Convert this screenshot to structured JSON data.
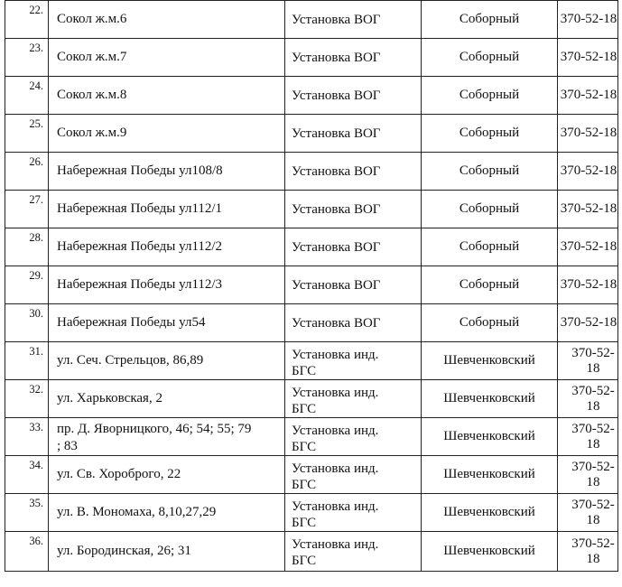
{
  "table": {
    "rows": [
      {
        "num": "22.",
        "address": "Сокол ж.м.6",
        "work": "Установка ВОГ",
        "district": "Соборный",
        "phone": "370-52-18"
      },
      {
        "num": "23.",
        "address": "Сокол ж.м.7",
        "work": "Установка ВОГ",
        "district": "Соборный",
        "phone": "370-52-18"
      },
      {
        "num": "24.",
        "address": "Сокол ж.м.8",
        "work": "Установка ВОГ",
        "district": "Соборный",
        "phone": "370-52-18"
      },
      {
        "num": "25.",
        "address": "Сокол ж.м.9",
        "work": "Установка ВОГ",
        "district": "Соборный",
        "phone": "370-52-18"
      },
      {
        "num": "26.",
        "address": "Набережная Победы ул108/8",
        "work": "Установка ВОГ",
        "district": "Соборный",
        "phone": "370-52-18"
      },
      {
        "num": "27.",
        "address": "Набережная Победы ул112/1",
        "work": "Установка ВОГ",
        "district": "Соборный",
        "phone": "370-52-18"
      },
      {
        "num": "28.",
        "address": "Набережная Победы ул112/2",
        "work": "Установка ВОГ",
        "district": "Соборный",
        "phone": "370-52-18"
      },
      {
        "num": "29.",
        "address": "Набережная Победы ул112/3",
        "work": "Установка ВОГ",
        "district": "Соборный",
        "phone": "370-52-18"
      },
      {
        "num": "30.",
        "address": "Набережная Победы ул54",
        "work": "Установка ВОГ",
        "district": "Соборный",
        "phone": "370-52-18"
      },
      {
        "num": "31.",
        "address": "ул. Сеч. Стрельцов, 86,89",
        "work_line1": "Установка инд.",
        "work_line2": "БГС",
        "district": "Шевченковский",
        "phone": "370-52-18"
      },
      {
        "num": "32.",
        "address": "ул. Харьковская, 2",
        "work_line1": "Установка инд.",
        "work_line2": "БГС",
        "district": "Шевченковский",
        "phone": "370-52-18"
      },
      {
        "num": "33.",
        "address_line1": "пр. Д. Яворницкого, 46; 54; 55; 79",
        "address_line2": "; 83",
        "work_line1": "Установка инд.",
        "work_line2": "БГС",
        "district": "Шевченковский",
        "phone": "370-52-18"
      },
      {
        "num": "34.",
        "address": "ул. Св. Хороброго, 22",
        "work_line1": "Установка инд.",
        "work_line2": "БГС",
        "district": "Шевченковский",
        "phone": "370-52-18"
      },
      {
        "num": "35.",
        "address": "ул. В. Мономаха, 8,10,27,29",
        "work_line1": "Установка инд.",
        "work_line2": "БГС",
        "district": "Шевченковский",
        "phone": "370-52-18"
      },
      {
        "num": "36.",
        "address": "ул. Бородинская, 26; 31",
        "work_line1": "Установка инд.",
        "work_line2": "БГС",
        "district": "Шевченковский",
        "phone": "370-52-18"
      }
    ]
  }
}
